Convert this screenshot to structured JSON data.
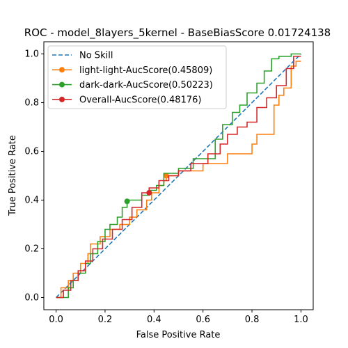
{
  "chart_data": {
    "type": "line",
    "title": "ROC - model_8layers_5kernel - BaseBiasScore 0.01724138",
    "xlabel": "False Positive Rate",
    "ylabel": "True Positive Rate",
    "xlim": [
      -0.05,
      1.05
    ],
    "ylim": [
      -0.05,
      1.05
    ],
    "x_ticks": [
      "0.0",
      "0.2",
      "0.4",
      "0.6",
      "0.8",
      "1.0"
    ],
    "y_ticks": [
      "0.0",
      "0.2",
      "0.4",
      "0.6",
      "0.8",
      "1.0"
    ],
    "grid": false,
    "legend_position": "top-left",
    "series": [
      {
        "name": "No Skill",
        "color": "#1f77b4",
        "dash": "dashed",
        "marker": null,
        "x": [
          0,
          1
        ],
        "y": [
          0,
          1
        ]
      },
      {
        "name": "light-light-AucScore(0.45809)",
        "color": "#ff7f0e",
        "dash": "solid",
        "marker": {
          "x": 0.45,
          "y": 0.5
        },
        "x": [
          0.0,
          0.02,
          0.02,
          0.05,
          0.05,
          0.07,
          0.07,
          0.1,
          0.1,
          0.13,
          0.13,
          0.14,
          0.14,
          0.18,
          0.18,
          0.22,
          0.22,
          0.26,
          0.26,
          0.3,
          0.3,
          0.33,
          0.33,
          0.37,
          0.37,
          0.39,
          0.39,
          0.42,
          0.42,
          0.44,
          0.44,
          0.45,
          0.45,
          0.5,
          0.5,
          0.6,
          0.6,
          0.7,
          0.7,
          0.8,
          0.8,
          0.82,
          0.82,
          0.89,
          0.89,
          0.91,
          0.91,
          0.93,
          0.93,
          0.96,
          0.96,
          0.98,
          0.98,
          1.0
        ],
        "y": [
          0.0,
          0.0,
          0.04,
          0.04,
          0.07,
          0.07,
          0.1,
          0.1,
          0.14,
          0.14,
          0.18,
          0.18,
          0.22,
          0.22,
          0.25,
          0.25,
          0.28,
          0.28,
          0.3,
          0.3,
          0.33,
          0.33,
          0.36,
          0.36,
          0.4,
          0.4,
          0.43,
          0.43,
          0.46,
          0.46,
          0.48,
          0.48,
          0.5,
          0.5,
          0.52,
          0.52,
          0.55,
          0.55,
          0.59,
          0.59,
          0.63,
          0.63,
          0.67,
          0.67,
          0.79,
          0.79,
          0.83,
          0.83,
          0.86,
          0.86,
          0.95,
          0.95,
          0.97,
          0.97
        ]
      },
      {
        "name": "dark-dark-AucScore(0.50223)",
        "color": "#2ca02c",
        "dash": "solid",
        "marker": {
          "x": 0.29,
          "y": 0.395
        },
        "x": [
          0.0,
          0.05,
          0.05,
          0.07,
          0.07,
          0.09,
          0.09,
          0.12,
          0.12,
          0.14,
          0.14,
          0.17,
          0.17,
          0.2,
          0.2,
          0.22,
          0.22,
          0.25,
          0.25,
          0.27,
          0.27,
          0.29,
          0.29,
          0.35,
          0.35,
          0.38,
          0.38,
          0.41,
          0.41,
          0.44,
          0.44,
          0.5,
          0.5,
          0.56,
          0.56,
          0.65,
          0.65,
          0.68,
          0.68,
          0.72,
          0.72,
          0.75,
          0.75,
          0.78,
          0.78,
          0.82,
          0.82,
          0.85,
          0.85,
          0.88,
          0.88,
          0.91,
          0.91,
          0.96,
          0.96,
          1.0
        ],
        "y": [
          0.0,
          0.0,
          0.04,
          0.04,
          0.07,
          0.07,
          0.1,
          0.1,
          0.14,
          0.14,
          0.18,
          0.18,
          0.23,
          0.23,
          0.28,
          0.28,
          0.3,
          0.3,
          0.33,
          0.33,
          0.37,
          0.37,
          0.4,
          0.4,
          0.42,
          0.42,
          0.44,
          0.44,
          0.46,
          0.46,
          0.51,
          0.51,
          0.53,
          0.53,
          0.57,
          0.57,
          0.65,
          0.65,
          0.71,
          0.71,
          0.76,
          0.76,
          0.79,
          0.79,
          0.84,
          0.84,
          0.88,
          0.88,
          0.93,
          0.93,
          0.98,
          0.98,
          0.99,
          0.99,
          1.0,
          1.0
        ]
      },
      {
        "name": "Overall-AucScore(0.48176)",
        "color": "#d62728",
        "dash": "solid",
        "marker": {
          "x": 0.38,
          "y": 0.43
        },
        "x": [
          0.0,
          0.03,
          0.03,
          0.06,
          0.06,
          0.09,
          0.09,
          0.12,
          0.12,
          0.15,
          0.15,
          0.19,
          0.19,
          0.23,
          0.23,
          0.27,
          0.27,
          0.31,
          0.31,
          0.35,
          0.35,
          0.38,
          0.38,
          0.42,
          0.42,
          0.46,
          0.46,
          0.5,
          0.5,
          0.55,
          0.55,
          0.62,
          0.62,
          0.67,
          0.67,
          0.7,
          0.7,
          0.74,
          0.74,
          0.78,
          0.78,
          0.82,
          0.82,
          0.86,
          0.86,
          0.9,
          0.9,
          0.94,
          0.94,
          0.97,
          0.97,
          1.0
        ],
        "y": [
          0.0,
          0.0,
          0.03,
          0.03,
          0.07,
          0.07,
          0.11,
          0.11,
          0.15,
          0.15,
          0.2,
          0.2,
          0.24,
          0.24,
          0.28,
          0.28,
          0.32,
          0.32,
          0.37,
          0.37,
          0.43,
          0.43,
          0.45,
          0.45,
          0.48,
          0.48,
          0.5,
          0.5,
          0.52,
          0.52,
          0.55,
          0.55,
          0.59,
          0.59,
          0.63,
          0.63,
          0.67,
          0.67,
          0.7,
          0.7,
          0.72,
          0.72,
          0.78,
          0.78,
          0.82,
          0.82,
          0.87,
          0.87,
          0.94,
          0.94,
          0.99,
          0.99
        ]
      }
    ]
  }
}
